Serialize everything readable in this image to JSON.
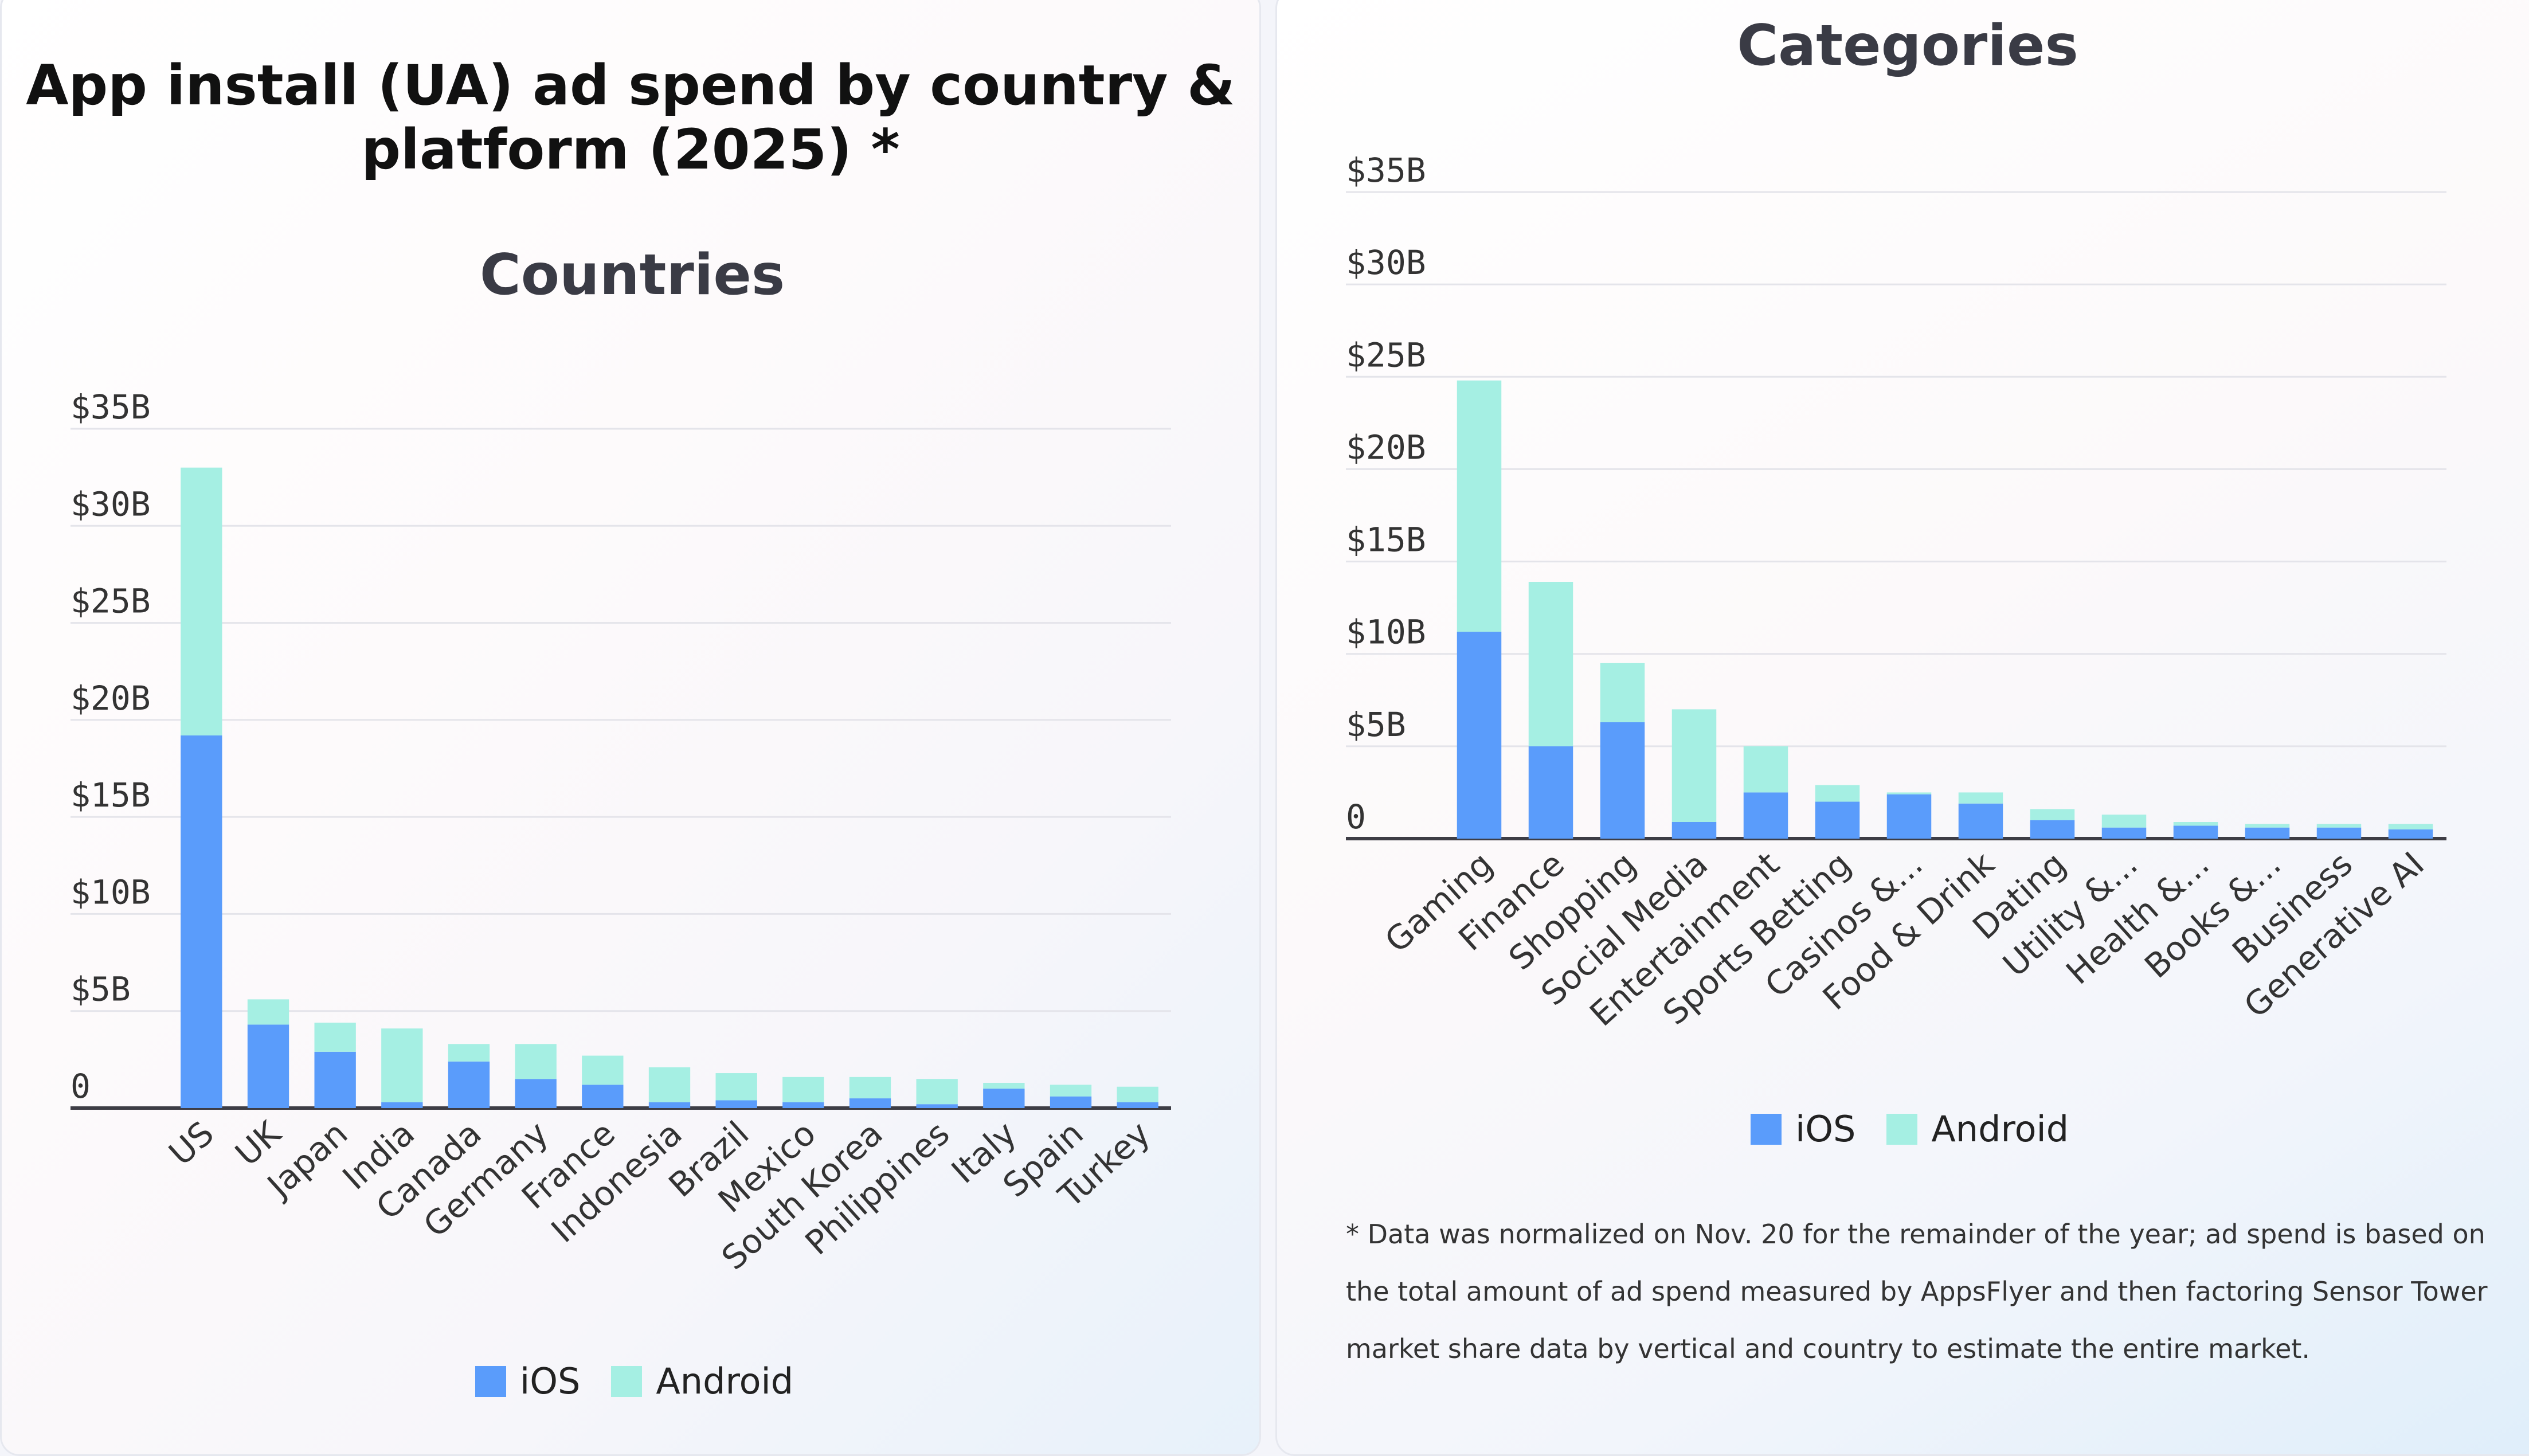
{
  "page_title": "App install (UA) ad spend by country & platform (2025) *",
  "footnote": "* Data was normalized on Nov. 20 for the remainder of the year; ad spend is based on the total amount of ad spend measured by AppsFlyer and then factoring Sensor Tower market share data by vertical and country to estimate the entire market.",
  "colors": {
    "ios": "#5a9cfb",
    "android": "#a5efe3",
    "grid": "#e4e4ea",
    "axis": "#3d3d45"
  },
  "chart_data": [
    {
      "type": "bar",
      "stacked": true,
      "title": "Countries",
      "categories": [
        "US",
        "UK",
        "Japan",
        "India",
        "Canada",
        "Germany",
        "France",
        "Indonesia",
        "Brazil",
        "Mexico",
        "South Korea",
        "Philippines",
        "Italy",
        "Spain",
        "Turkey"
      ],
      "series": [
        {
          "name": "iOS",
          "values": [
            19.2,
            4.3,
            2.9,
            0.3,
            2.4,
            1.5,
            1.2,
            0.3,
            0.4,
            0.3,
            0.5,
            0.2,
            1.0,
            0.6,
            0.3
          ]
        },
        {
          "name": "Android",
          "values": [
            13.8,
            1.3,
            1.5,
            3.8,
            0.9,
            1.8,
            1.5,
            1.8,
            1.4,
            1.3,
            1.1,
            1.3,
            0.3,
            0.6,
            0.8
          ]
        }
      ],
      "yticks": [
        "0",
        "$5B",
        "$10B",
        "$15B",
        "$20B",
        "$25B",
        "$30B",
        "$35B"
      ],
      "ylim": [
        0,
        35
      ],
      "grid": true,
      "legend": "bottom-center"
    },
    {
      "type": "bar",
      "stacked": true,
      "title": "Categories",
      "categories": [
        "Gaming",
        "Finance",
        "Shopping",
        "Social Media",
        "Entertainment",
        "Sports Betting",
        "Casinos &...",
        "Food & Drink",
        "Dating",
        "Utility &...",
        "Health &...",
        "Books &...",
        "Business",
        "Generative AI"
      ],
      "series": [
        {
          "name": "iOS",
          "values": [
            11.2,
            5.0,
            6.3,
            0.9,
            2.5,
            2.0,
            2.4,
            1.9,
            1.0,
            0.6,
            0.7,
            0.6,
            0.6,
            0.5
          ]
        },
        {
          "name": "Android",
          "values": [
            13.6,
            8.9,
            3.2,
            6.1,
            2.5,
            0.9,
            0.1,
            0.6,
            0.6,
            0.7,
            0.2,
            0.2,
            0.2,
            0.3
          ]
        }
      ],
      "yticks": [
        "0",
        "$5B",
        "$10B",
        "$15B",
        "$20B",
        "$25B",
        "$30B",
        "$35B"
      ],
      "ylim": [
        0,
        35
      ],
      "grid": true,
      "legend": "bottom-center"
    }
  ]
}
